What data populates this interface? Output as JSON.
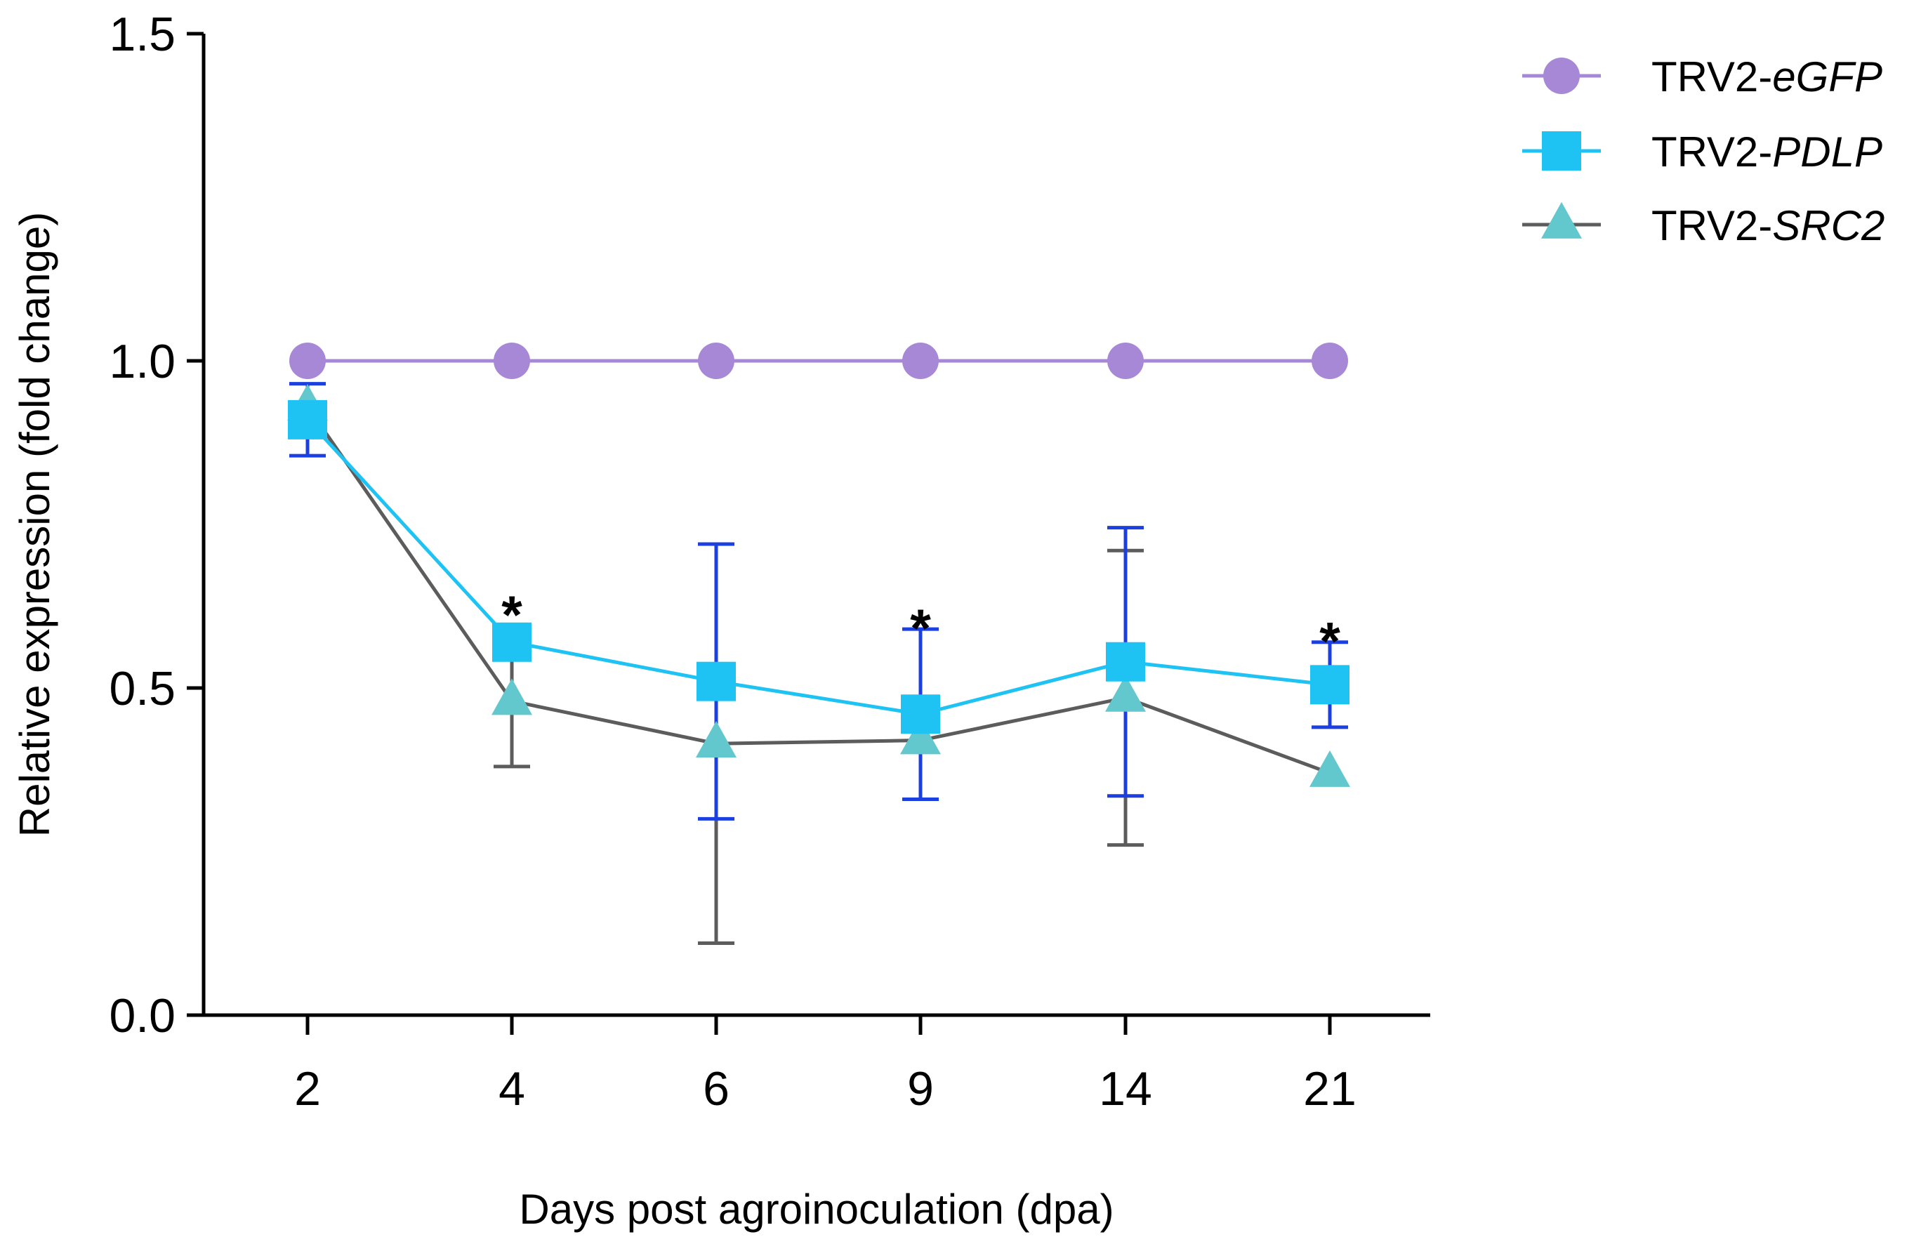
{
  "chart_data": {
    "type": "line",
    "title": "",
    "xlabel": "Days post agroinoculation (dpa)",
    "ylabel": "Relative expression (fold change)",
    "categories": [
      "2",
      "4",
      "6",
      "9",
      "14",
      "21"
    ],
    "ylim": [
      0,
      1.5
    ],
    "yticks": [
      "0.0",
      "0.5",
      "1.0",
      "1.5"
    ],
    "grid": false,
    "legend_position": "top-right",
    "series": [
      {
        "name_prefix": "TRV2-",
        "name_italic": "eGFP",
        "marker": "circle",
        "color": "#a788d6",
        "line_color": "#a788d6",
        "error_color": "#a788d6",
        "values": [
          1.0,
          1.0,
          1.0,
          1.0,
          1.0,
          1.0
        ],
        "error": [
          0,
          0,
          0,
          0,
          0,
          0
        ]
      },
      {
        "name_prefix": "TRV2-",
        "name_italic": "PDLP",
        "marker": "square",
        "color": "#1ec3f4",
        "line_color": "#1ec3f4",
        "error_color": "#1c3fe0",
        "values": [
          0.91,
          0.57,
          0.51,
          0.46,
          0.54,
          0.505
        ],
        "error": [
          0.055,
          0,
          0.21,
          0.13,
          0.205,
          0.065
        ]
      },
      {
        "name_prefix": "TRV2-",
        "name_italic": "SRC2",
        "marker": "triangle",
        "color": "#62c8cd",
        "line_color": "#5c5c5c",
        "error_color": "#5c5c5c",
        "values": [
          0.93,
          0.48,
          0.415,
          0.42,
          0.485,
          0.37
        ],
        "error": [
          0,
          0.1,
          0.305,
          0,
          0.225,
          0
        ]
      }
    ],
    "annotations": [
      {
        "category": "4",
        "text": "*",
        "y": 0.62
      },
      {
        "category": "9",
        "text": "*",
        "y": 0.6
      },
      {
        "category": "21",
        "text": "*",
        "y": 0.58
      }
    ]
  }
}
